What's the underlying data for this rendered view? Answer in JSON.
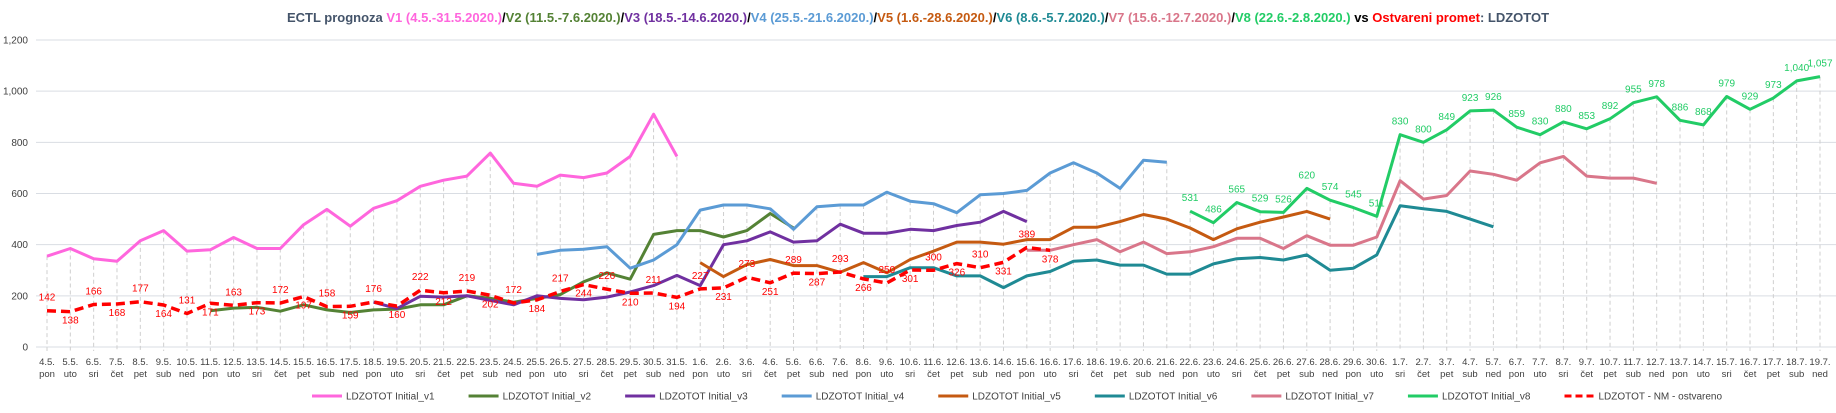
{
  "chart_data": {
    "type": "line",
    "title_parts": [
      {
        "text": "ECTL prognoza ",
        "color": "#44546a"
      },
      {
        "text": "V1 (4.5.-31.5.2020.)",
        "color": "#ff66dd"
      },
      {
        "text": "/",
        "color": "#000000"
      },
      {
        "text": "V2 (11.5.-7.6.2020.)",
        "color": "#548235"
      },
      {
        "text": "/",
        "color": "#000000"
      },
      {
        "text": "V3 (18.5.-14.6.2020.)",
        "color": "#7030a0"
      },
      {
        "text": "/",
        "color": "#000000"
      },
      {
        "text": "V4 (25.5.-21.6.2020.)",
        "color": "#5b9bd5"
      },
      {
        "text": "/",
        "color": "#000000"
      },
      {
        "text": "V5 (1.6.-28.6.2020.)",
        "color": "#c55a11"
      },
      {
        "text": "/",
        "color": "#000000"
      },
      {
        "text": "V6 (8.6.-5.7.2020.)",
        "color": "#1f8a94"
      },
      {
        "text": "/",
        "color": "#000000"
      },
      {
        "text": "V7 (15.6.-12.7.2020.)",
        "color": "#d9768a"
      },
      {
        "text": "/",
        "color": "#000000"
      },
      {
        "text": "V8 (22.6.-2.8.2020.)",
        "color": "#22cc66"
      },
      {
        "text": " vs ",
        "color": "#000000"
      },
      {
        "text": "Ostvareni promet",
        "color": "#ff0000"
      },
      {
        "text": ": LDZOTOT",
        "color": "#44546a"
      }
    ],
    "xlabel": "",
    "ylabel": "",
    "ylim": [
      0,
      1200
    ],
    "yticks": [
      0,
      200,
      400,
      600,
      800,
      1000,
      1200
    ],
    "ytick_labels": [
      "0",
      "200",
      "400",
      "600",
      "800",
      "1,000",
      "1,200"
    ],
    "grid": "horizontal",
    "legend_position": "bottom",
    "categories": [
      "4.5.",
      "5.5.",
      "6.5.",
      "7.5.",
      "8.5.",
      "9.5.",
      "10.5.",
      "11.5.",
      "12.5.",
      "13.5.",
      "14.5.",
      "15.5.",
      "16.5.",
      "17.5.",
      "18.5.",
      "19.5.",
      "20.5.",
      "21.5.",
      "22.5.",
      "23.5.",
      "24.5.",
      "25.5.",
      "26.5.",
      "27.5.",
      "28.5.",
      "29.5.",
      "30.5.",
      "31.5.",
      "1.6.",
      "2.6.",
      "3.6.",
      "4.6.",
      "5.6.",
      "6.6.",
      "7.6.",
      "8.6.",
      "9.6.",
      "10.6.",
      "11.6.",
      "12.6.",
      "13.6.",
      "14.6.",
      "15.6.",
      "16.6.",
      "17.6.",
      "18.6.",
      "19.6.",
      "20.6.",
      "21.6.",
      "22.6.",
      "23.6.",
      "24.6.",
      "25.6.",
      "26.6.",
      "27.6.",
      "28.6.",
      "29.6.",
      "30.6.",
      "1.7.",
      "2.7.",
      "3.7.",
      "4.7.",
      "5.7.",
      "6.7.",
      "7.7.",
      "8.7.",
      "9.7.",
      "10.7.",
      "11.7.",
      "12.7.",
      "13.7.",
      "14.7.",
      "15.7.",
      "16.7.",
      "17.7.",
      "18.7.",
      "19.7."
    ],
    "weekdays": [
      "pon",
      "uto",
      "sri",
      "čet",
      "pet",
      "sub",
      "ned",
      "pon",
      "uto",
      "sri",
      "čet",
      "pet",
      "sub",
      "ned",
      "pon",
      "uto",
      "sri",
      "čet",
      "pet",
      "sub",
      "ned",
      "pon",
      "uto",
      "sri",
      "čet",
      "pet",
      "sub",
      "ned",
      "pon",
      "uto",
      "sri",
      "čet",
      "pet",
      "sub",
      "ned",
      "pon",
      "uto",
      "sri",
      "čet",
      "pet",
      "sub",
      "ned",
      "pon",
      "uto",
      "sri",
      "čet",
      "pet",
      "sub",
      "ned",
      "pon",
      "uto",
      "sri",
      "čet",
      "pet",
      "sub",
      "ned",
      "pon",
      "uto",
      "sri",
      "čet",
      "pet",
      "sub",
      "ned",
      "pon",
      "uto",
      "sri",
      "čet",
      "pet",
      "sub",
      "ned",
      "pon",
      "uto",
      "sri",
      "čet",
      "pet",
      "sub",
      "ned"
    ],
    "series": [
      {
        "name": "LDZOTOT Initial_v1",
        "color": "#ff66dd",
        "dash": false,
        "start": 0,
        "values": [
          355,
          385,
          345,
          335,
          415,
          455,
          375,
          380,
          428,
          385,
          385,
          478,
          538,
          472,
          542,
          572,
          628,
          652,
          668,
          758,
          640,
          628,
          672,
          662,
          680,
          745,
          910,
          745
        ]
      },
      {
        "name": "LDZOTOT Initial_v2",
        "color": "#548235",
        "dash": false,
        "start": 7,
        "values": [
          142,
          152,
          155,
          140,
          165,
          145,
          135,
          145,
          148,
          165,
          165,
          200,
          190,
          175,
          190,
          205,
          255,
          290,
          265,
          440,
          455,
          455,
          430,
          455,
          522,
          465
        ]
      },
      {
        "name": "LDZOTOT Initial_v3",
        "color": "#7030a0",
        "dash": false,
        "start": 14,
        "values": [
          175,
          150,
          198,
          195,
          200,
          182,
          165,
          200,
          190,
          185,
          195,
          215,
          240,
          280,
          240,
          400,
          415,
          450,
          410,
          415,
          480,
          445,
          445,
          460,
          455,
          475,
          488,
          530,
          490
        ]
      },
      {
        "name": "LDZOTOT Initial_v4",
        "color": "#5b9bd5",
        "dash": false,
        "start": 21,
        "values": [
          362,
          378,
          382,
          392,
          308,
          340,
          400,
          535,
          555,
          555,
          540,
          460,
          548,
          555,
          555,
          605,
          570,
          560,
          525,
          595,
          600,
          612,
          680,
          720,
          680,
          620,
          730,
          722
        ]
      },
      {
        "name": "LDZOTOT Initial_v5",
        "color": "#c55a11",
        "dash": false,
        "start": 28,
        "values": [
          330,
          275,
          322,
          342,
          318,
          318,
          292,
          330,
          290,
          342,
          375,
          410,
          410,
          402,
          420,
          420,
          468,
          468,
          490,
          518,
          500,
          465,
          420,
          462,
          488,
          508,
          530,
          500
        ]
      },
      {
        "name": "LDZOTOT Initial_v6",
        "color": "#1f8a94",
        "dash": false,
        "start": 35,
        "values": [
          275,
          275,
          310,
          310,
          278,
          278,
          232,
          278,
          295,
          335,
          340,
          320,
          320,
          285,
          285,
          325,
          345,
          350,
          340,
          360,
          300,
          308,
          360,
          552,
          540,
          530,
          500,
          470
        ]
      },
      {
        "name": "LDZOTOT Initial_v7",
        "color": "#d9768a",
        "dash": false,
        "start": 42,
        "values": [
          378,
          378,
          400,
          420,
          372,
          410,
          365,
          372,
          392,
          425,
          425,
          385,
          435,
          398,
          398,
          430,
          650,
          578,
          592,
          688,
          675,
          652,
          720,
          745,
          668,
          660,
          660,
          640
        ]
      },
      {
        "name": "LDZOTOT Initial_v8",
        "color": "#22cc66",
        "dash": false,
        "start": 49,
        "labeled": true,
        "values": [
          531,
          486,
          565,
          529,
          526,
          620,
          574,
          545,
          511,
          830,
          800,
          849,
          923,
          926,
          859,
          830,
          880,
          853,
          892,
          955,
          978,
          886,
          868,
          979,
          929,
          973,
          1040,
          1057
        ]
      },
      {
        "name": "LDZOTOT - NM - ostvareno",
        "color": "#ff0000",
        "dash": true,
        "start": 0,
        "labeled": true,
        "values": [
          142,
          138,
          166,
          168,
          177,
          164,
          131,
          171,
          163,
          173,
          172,
          197,
          158,
          159,
          176,
          160,
          222,
          212,
          219,
          202,
          172,
          184,
          217,
          244,
          226,
          210,
          211,
          194,
          227,
          231,
          273,
          251,
          289,
          287,
          293,
          266,
          250,
          301,
          300,
          326,
          310,
          331,
          389,
          378
        ]
      }
    ]
  }
}
